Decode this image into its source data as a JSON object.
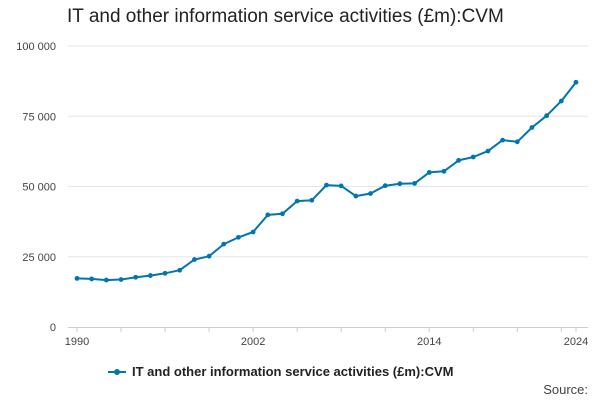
{
  "chart_data": {
    "type": "line",
    "title": "IT and other information service activities (£m):CVM",
    "xlabel": "",
    "ylabel": "",
    "x": [
      1990,
      1991,
      1992,
      1993,
      1994,
      1995,
      1996,
      1997,
      1998,
      1999,
      2000,
      2001,
      2002,
      2003,
      2004,
      2005,
      2006,
      2007,
      2008,
      2009,
      2010,
      2011,
      2012,
      2013,
      2014,
      2015,
      2016,
      2017,
      2018,
      2019,
      2020,
      2021,
      2022,
      2023,
      2024
    ],
    "series": [
      {
        "name": "IT and other information service activities (£m):CVM",
        "color": "#0075b0",
        "values": [
          17300,
          17100,
          16700,
          16900,
          17700,
          18300,
          19100,
          20200,
          24000,
          25200,
          29500,
          31900,
          33800,
          39900,
          40300,
          44800,
          45100,
          50500,
          50200,
          46600,
          47500,
          50300,
          51000,
          51100,
          55000,
          55400,
          59300,
          60500,
          62600,
          66500,
          65900,
          71000,
          75200,
          80400,
          87100
        ]
      }
    ],
    "xticks": [
      1990,
      2002,
      2014,
      2024
    ],
    "xlim": [
      1990,
      2024
    ],
    "yticks": [
      0,
      25000,
      50000,
      75000,
      100000
    ],
    "ytick_labels": [
      "0",
      "25 000",
      "50 000",
      "75 000",
      "100 000"
    ],
    "ylim": [
      0,
      100000
    ],
    "grid": true,
    "legend_position": "bottom"
  },
  "source_label": "Source:"
}
